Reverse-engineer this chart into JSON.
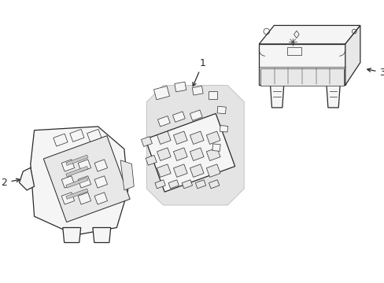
{
  "background_color": "#ffffff",
  "line_color": "#2a2a2a",
  "fill_light": "#f5f5f5",
  "fill_medium": "#e8e8e8",
  "fill_shade": "#d0d0d0",
  "label_1": "1",
  "label_2": "2",
  "label_3": "3",
  "figsize": [
    4.89,
    3.6
  ],
  "dpi": 100
}
